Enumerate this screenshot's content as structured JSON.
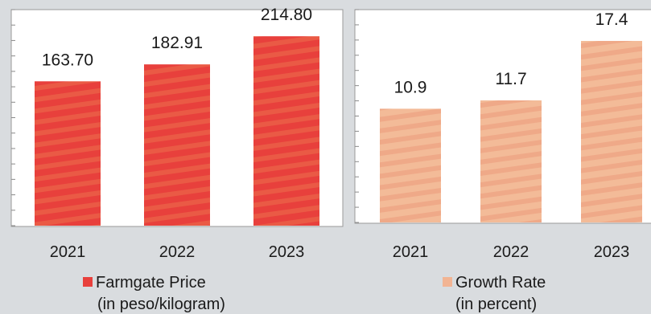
{
  "chart_data": [
    {
      "type": "bar",
      "categories": [
        "2021",
        "2022",
        "2023"
      ],
      "values": [
        163.7,
        182.91,
        214.8
      ],
      "value_labels": [
        "163.70",
        "182.91",
        "214.80"
      ],
      "series_name": "Farmgate Price",
      "legend_line2": "(in peso/kilogram)",
      "color": "#e8403c",
      "ylim": [
        0,
        245
      ],
      "legend_position": "bottom"
    },
    {
      "type": "bar",
      "categories": [
        "2021",
        "2022",
        "2023"
      ],
      "values": [
        10.9,
        11.7,
        17.4
      ],
      "value_labels": [
        "10.9",
        "11.7",
        "17.4"
      ],
      "series_name": "Growth Rate",
      "legend_line2": "(in percent)",
      "color": "#f2b493",
      "ylim": [
        0,
        20.4
      ],
      "legend_position": "bottom"
    }
  ]
}
